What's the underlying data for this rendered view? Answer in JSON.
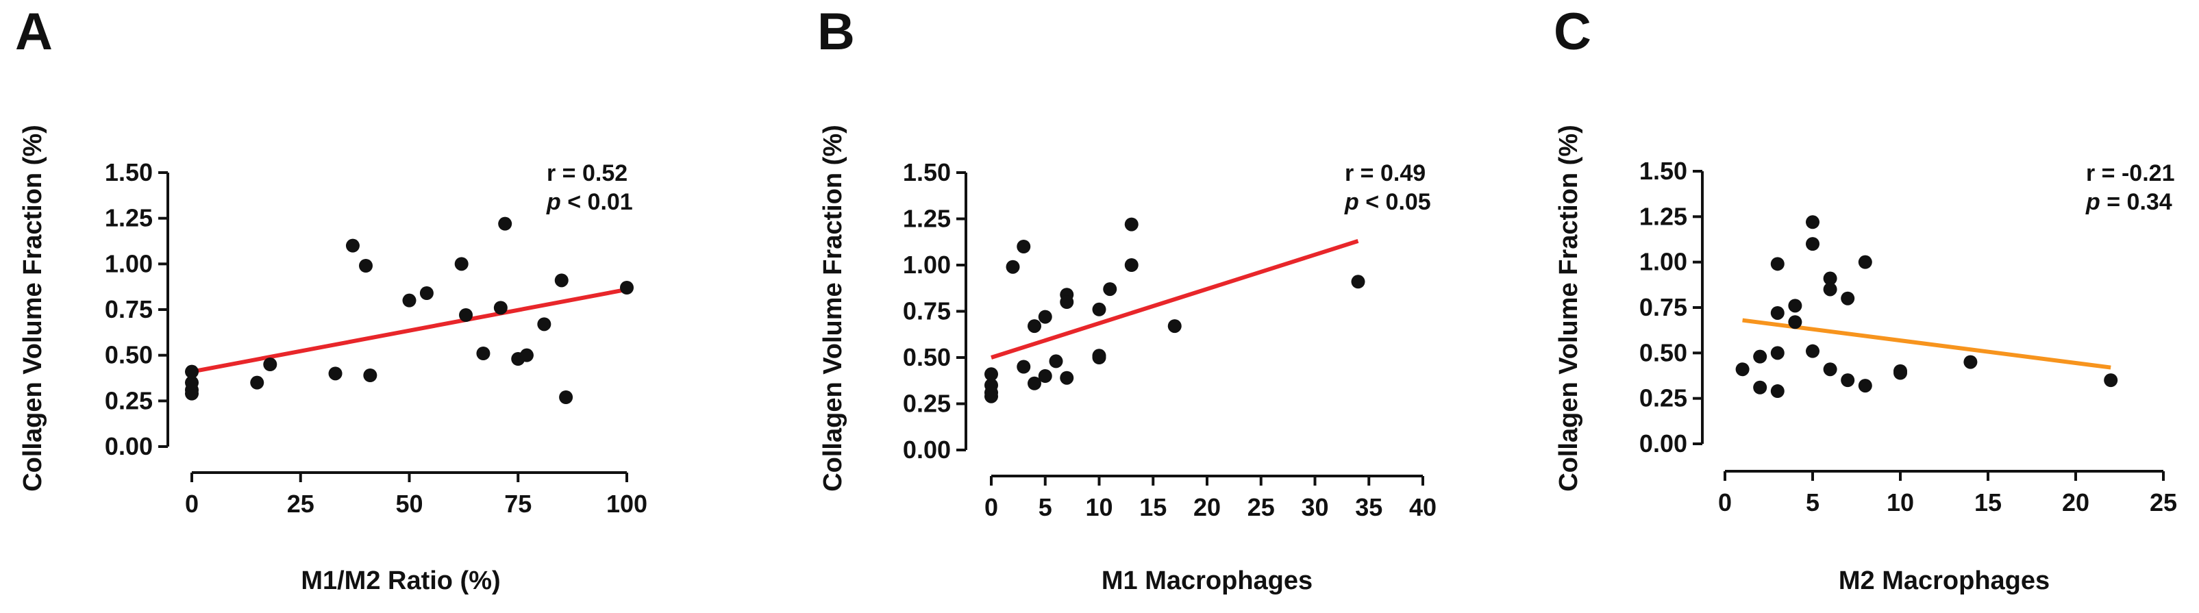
{
  "chart_data": [
    {
      "type": "scatter",
      "panel": "A",
      "xlabel": "M1/M2 Ratio (%)",
      "ylabel": "Collagen  Volume Fraction (%)",
      "xlim": [
        0,
        100
      ],
      "ylim": [
        0,
        1.5
      ],
      "xticks": [
        0,
        25,
        50,
        75,
        100
      ],
      "xtick_labels": [
        "0",
        "25",
        "50",
        "75",
        "100"
      ],
      "yticks": [
        0,
        0.25,
        0.5,
        0.75,
        1.0,
        1.25,
        1.5
      ],
      "ytick_labels": [
        "0.00",
        "0.25",
        "0.50",
        "0.75",
        "1.00",
        "1.25",
        "1.50"
      ],
      "r_label": "r = 0.52",
      "p_symbol": "p",
      "p_rest": " < 0.01",
      "regression": {
        "x": [
          0,
          100
        ],
        "y": [
          0.41,
          0.86
        ],
        "color": "#e8262a"
      },
      "points": [
        [
          0,
          0.29
        ],
        [
          0,
          0.31
        ],
        [
          0,
          0.35
        ],
        [
          0,
          0.41
        ],
        [
          15,
          0.35
        ],
        [
          18,
          0.45
        ],
        [
          33,
          0.4
        ],
        [
          37,
          1.1
        ],
        [
          40,
          0.99
        ],
        [
          41,
          0.39
        ],
        [
          50,
          0.8
        ],
        [
          54,
          0.84
        ],
        [
          62,
          1.0
        ],
        [
          63,
          0.72
        ],
        [
          67,
          0.51
        ],
        [
          71,
          0.76
        ],
        [
          72,
          1.22
        ],
        [
          75,
          0.48
        ],
        [
          77,
          0.5
        ],
        [
          81,
          0.67
        ],
        [
          85,
          0.91
        ],
        [
          86,
          0.27
        ],
        [
          100,
          0.87
        ]
      ]
    },
    {
      "type": "scatter",
      "panel": "B",
      "xlabel": "M1 Macrophages",
      "ylabel": "Collagen  Volume Fraction (%)",
      "xlim": [
        0,
        40
      ],
      "ylim": [
        0,
        1.5
      ],
      "xticks": [
        0,
        5,
        10,
        15,
        20,
        25,
        30,
        35,
        40
      ],
      "xtick_labels": [
        "0",
        "5",
        "10",
        "15",
        "20",
        "25",
        "30",
        "35",
        "40"
      ],
      "yticks": [
        0,
        0.25,
        0.5,
        0.75,
        1.0,
        1.25,
        1.5
      ],
      "ytick_labels": [
        "0.00",
        "0.25",
        "0.50",
        "0.75",
        "1.00",
        "1.25",
        "1.50"
      ],
      "r_label": "r = 0.49",
      "p_symbol": "p",
      "p_rest": " < 0.05",
      "regression": {
        "x": [
          0,
          34
        ],
        "y": [
          0.5,
          1.13
        ],
        "color": "#e8262a"
      },
      "points": [
        [
          0,
          0.29
        ],
        [
          0,
          0.31
        ],
        [
          0,
          0.35
        ],
        [
          0,
          0.41
        ],
        [
          2,
          0.99
        ],
        [
          3,
          1.1
        ],
        [
          3,
          0.45
        ],
        [
          4,
          0.67
        ],
        [
          4,
          0.36
        ],
        [
          5,
          0.72
        ],
        [
          5,
          0.4
        ],
        [
          6,
          0.48
        ],
        [
          7,
          0.84
        ],
        [
          7,
          0.8
        ],
        [
          7,
          0.39
        ],
        [
          10,
          0.76
        ],
        [
          10,
          0.51
        ],
        [
          10,
          0.5
        ],
        [
          11,
          0.87
        ],
        [
          13,
          1.22
        ],
        [
          13,
          1.0
        ],
        [
          17,
          0.67
        ],
        [
          34,
          0.91
        ]
      ]
    },
    {
      "type": "scatter",
      "panel": "C",
      "xlabel": "M2 Macrophages",
      "ylabel": "Collagen  Volume Fraction (%)",
      "xlim": [
        0,
        25
      ],
      "ylim": [
        0,
        1.5
      ],
      "xticks": [
        0,
        5,
        10,
        15,
        20,
        25
      ],
      "xtick_labels": [
        "0",
        "5",
        "10",
        "15",
        "20",
        "25"
      ],
      "yticks": [
        0,
        0.25,
        0.5,
        0.75,
        1.0,
        1.25,
        1.5
      ],
      "ytick_labels": [
        "0.00",
        "0.25",
        "0.50",
        "0.75",
        "1.00",
        "1.25",
        "1.50"
      ],
      "r_label": "r = -0.21",
      "p_symbol": "p",
      "p_rest": " = 0.34",
      "regression": {
        "x": [
          1,
          22
        ],
        "y": [
          0.68,
          0.42
        ],
        "color": "#f7941d"
      },
      "points": [
        [
          1,
          0.41
        ],
        [
          2,
          0.48
        ],
        [
          2,
          0.31
        ],
        [
          3,
          0.99
        ],
        [
          3,
          0.72
        ],
        [
          3,
          0.5
        ],
        [
          3,
          0.29
        ],
        [
          4,
          0.76
        ],
        [
          4,
          0.67
        ],
        [
          5,
          1.22
        ],
        [
          5,
          1.1
        ],
        [
          5,
          0.51
        ],
        [
          6,
          0.91
        ],
        [
          6,
          0.85
        ],
        [
          6,
          0.41
        ],
        [
          7,
          0.8
        ],
        [
          7,
          0.35
        ],
        [
          8,
          1.0
        ],
        [
          8,
          0.32
        ],
        [
          10,
          0.4
        ],
        [
          10,
          0.39
        ],
        [
          14,
          0.45
        ],
        [
          22,
          0.35
        ]
      ]
    }
  ]
}
